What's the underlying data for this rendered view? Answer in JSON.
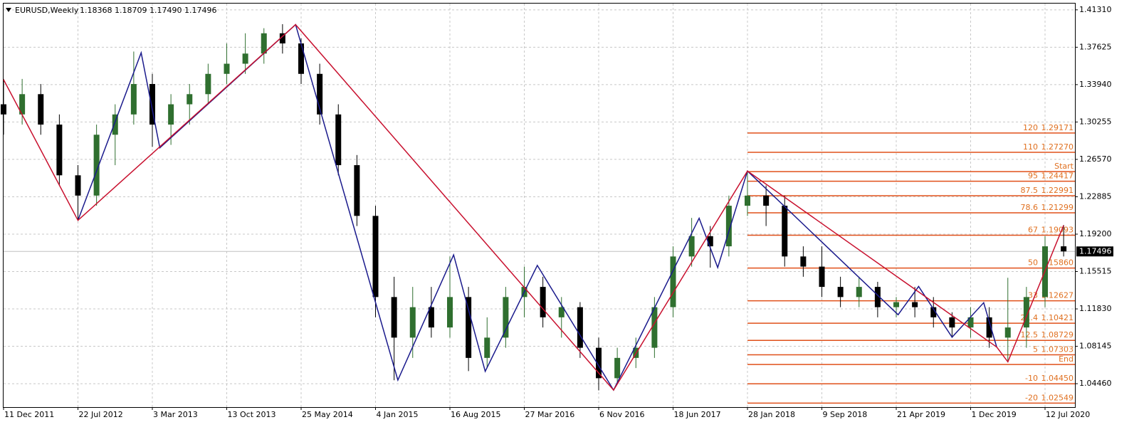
{
  "chart_data": {
    "type": "candlestick",
    "title": "EURUSD,Weekly",
    "subtitle": "1.18368 1.18709 1.17490 1.17496",
    "categories": [
      "11 Dec 2011",
      "22 Jul 2012",
      "3 Mar 2013",
      "13 Oct 2013",
      "25 May 2014",
      "4 Jan 2015",
      "16 Aug 2015",
      "27 Mar 2016",
      "6 Nov 2016",
      "18 Jun 2017",
      "28 Jan 2018",
      "9 Sep 2018",
      "21 Apr 2019",
      "1 Dec 2019",
      "12 Jul 2020"
    ],
    "ylim": [
      1.0215,
      1.4193
    ],
    "yticks": [
      {
        "value": 1.4131,
        "label": "1.41310"
      },
      {
        "value": 1.37625,
        "label": "1.37625"
      },
      {
        "value": 1.3394,
        "label": "1.33940"
      },
      {
        "value": 1.30255,
        "label": "1.30255"
      },
      {
        "value": 1.2657,
        "label": "1.26570"
      },
      {
        "value": 1.22885,
        "label": "1.22885"
      },
      {
        "value": 1.192,
        "label": "1.19200"
      },
      {
        "value": 1.15515,
        "label": "1.15515"
      },
      {
        "value": 1.1183,
        "label": "1.11830"
      },
      {
        "value": 1.08145,
        "label": "1.08145"
      },
      {
        "value": 1.0446,
        "label": "1.04460"
      }
    ],
    "grid": true,
    "up_color": "#2f6f2f",
    "down_color": "#000000",
    "last_price": 1.17496,
    "candles": [
      {
        "o": 1.32,
        "h": 1.345,
        "l": 1.29,
        "c": 1.31
      },
      {
        "o": 1.31,
        "h": 1.345,
        "l": 1.3,
        "c": 1.33
      },
      {
        "o": 1.33,
        "h": 1.34,
        "l": 1.29,
        "c": 1.3
      },
      {
        "o": 1.3,
        "h": 1.31,
        "l": 1.24,
        "c": 1.25
      },
      {
        "o": 1.25,
        "h": 1.26,
        "l": 1.205,
        "c": 1.23
      },
      {
        "o": 1.23,
        "h": 1.3,
        "l": 1.22,
        "c": 1.29
      },
      {
        "o": 1.29,
        "h": 1.32,
        "l": 1.26,
        "c": 1.31
      },
      {
        "o": 1.31,
        "h": 1.372,
        "l": 1.3,
        "c": 1.34
      },
      {
        "o": 1.34,
        "h": 1.35,
        "l": 1.278,
        "c": 1.3
      },
      {
        "o": 1.3,
        "h": 1.33,
        "l": 1.28,
        "c": 1.32
      },
      {
        "o": 1.32,
        "h": 1.34,
        "l": 1.3,
        "c": 1.33
      },
      {
        "o": 1.33,
        "h": 1.36,
        "l": 1.32,
        "c": 1.35
      },
      {
        "o": 1.35,
        "h": 1.38,
        "l": 1.34,
        "c": 1.36
      },
      {
        "o": 1.36,
        "h": 1.39,
        "l": 1.35,
        "c": 1.37
      },
      {
        "o": 1.37,
        "h": 1.395,
        "l": 1.36,
        "c": 1.39
      },
      {
        "o": 1.39,
        "h": 1.399,
        "l": 1.37,
        "c": 1.38
      },
      {
        "o": 1.38,
        "h": 1.385,
        "l": 1.34,
        "c": 1.35
      },
      {
        "o": 1.35,
        "h": 1.36,
        "l": 1.3,
        "c": 1.31
      },
      {
        "o": 1.31,
        "h": 1.32,
        "l": 1.25,
        "c": 1.26
      },
      {
        "o": 1.26,
        "h": 1.27,
        "l": 1.2,
        "c": 1.21
      },
      {
        "o": 1.21,
        "h": 1.22,
        "l": 1.11,
        "c": 1.13
      },
      {
        "o": 1.13,
        "h": 1.15,
        "l": 1.048,
        "c": 1.09
      },
      {
        "o": 1.09,
        "h": 1.14,
        "l": 1.07,
        "c": 1.12
      },
      {
        "o": 1.12,
        "h": 1.14,
        "l": 1.09,
        "c": 1.1
      },
      {
        "o": 1.1,
        "h": 1.17,
        "l": 1.09,
        "c": 1.13
      },
      {
        "o": 1.13,
        "h": 1.14,
        "l": 1.057,
        "c": 1.07
      },
      {
        "o": 1.07,
        "h": 1.11,
        "l": 1.06,
        "c": 1.09
      },
      {
        "o": 1.09,
        "h": 1.14,
        "l": 1.08,
        "c": 1.13
      },
      {
        "o": 1.13,
        "h": 1.16,
        "l": 1.11,
        "c": 1.14
      },
      {
        "o": 1.14,
        "h": 1.15,
        "l": 1.1,
        "c": 1.11
      },
      {
        "o": 1.11,
        "h": 1.13,
        "l": 1.09,
        "c": 1.12
      },
      {
        "o": 1.12,
        "h": 1.125,
        "l": 1.07,
        "c": 1.08
      },
      {
        "o": 1.08,
        "h": 1.09,
        "l": 1.038,
        "c": 1.05
      },
      {
        "o": 1.05,
        "h": 1.08,
        "l": 1.045,
        "c": 1.07
      },
      {
        "o": 1.07,
        "h": 1.09,
        "l": 1.06,
        "c": 1.08
      },
      {
        "o": 1.08,
        "h": 1.13,
        "l": 1.07,
        "c": 1.12
      },
      {
        "o": 1.12,
        "h": 1.18,
        "l": 1.11,
        "c": 1.17
      },
      {
        "o": 1.17,
        "h": 1.208,
        "l": 1.16,
        "c": 1.19
      },
      {
        "o": 1.19,
        "h": 1.2,
        "l": 1.159,
        "c": 1.18
      },
      {
        "o": 1.18,
        "h": 1.23,
        "l": 1.17,
        "c": 1.22
      },
      {
        "o": 1.22,
        "h": 1.254,
        "l": 1.21,
        "c": 1.23
      },
      {
        "o": 1.23,
        "h": 1.24,
        "l": 1.2,
        "c": 1.22
      },
      {
        "o": 1.22,
        "h": 1.23,
        "l": 1.16,
        "c": 1.17
      },
      {
        "o": 1.17,
        "h": 1.18,
        "l": 1.15,
        "c": 1.16
      },
      {
        "o": 1.16,
        "h": 1.18,
        "l": 1.13,
        "c": 1.14
      },
      {
        "o": 1.14,
        "h": 1.15,
        "l": 1.12,
        "c": 1.13
      },
      {
        "o": 1.13,
        "h": 1.15,
        "l": 1.12,
        "c": 1.14
      },
      {
        "o": 1.14,
        "h": 1.145,
        "l": 1.11,
        "c": 1.12
      },
      {
        "o": 1.12,
        "h": 1.13,
        "l": 1.11,
        "c": 1.125
      },
      {
        "o": 1.125,
        "h": 1.14,
        "l": 1.11,
        "c": 1.12
      },
      {
        "o": 1.12,
        "h": 1.13,
        "l": 1.1,
        "c": 1.11
      },
      {
        "o": 1.11,
        "h": 1.115,
        "l": 1.09,
        "c": 1.1
      },
      {
        "o": 1.1,
        "h": 1.12,
        "l": 1.09,
        "c": 1.11
      },
      {
        "o": 1.11,
        "h": 1.12,
        "l": 1.08,
        "c": 1.09
      },
      {
        "o": 1.09,
        "h": 1.149,
        "l": 1.066,
        "c": 1.1
      },
      {
        "o": 1.1,
        "h": 1.14,
        "l": 1.08,
        "c": 1.13
      },
      {
        "o": 1.13,
        "h": 1.19,
        "l": 1.12,
        "c": 1.18
      },
      {
        "o": 1.18,
        "h": 1.201,
        "l": 1.17,
        "c": 1.175
      }
    ],
    "zigzags": [
      {
        "color": "#1a1a8c",
        "x": [
          4,
          7.4,
          8.4,
          15.7,
          21.2,
          24.2,
          25.9,
          28.7,
          32.8,
          37.4,
          38.4,
          40,
          48.1,
          49.2,
          51,
          52.7,
          53.4
        ],
        "values": [
          1.2056,
          1.3708,
          1.2771,
          1.3985,
          1.0481,
          1.1716,
          1.0567,
          1.1612,
          1.0383,
          1.2077,
          1.1591,
          1.2542,
          1.1126,
          1.1404,
          1.0904,
          1.1244,
          1.0807
        ]
      },
      {
        "color": "#c8102e",
        "x": [
          0,
          4,
          15.7,
          32.8,
          40,
          53.4,
          54,
          57
        ],
        "values": [
          1.3444,
          1.2056,
          1.3985,
          1.0383,
          1.2542,
          1.0807,
          1.0661,
          1.2007
        ]
      }
    ],
    "fib": {
      "x_start": 40,
      "color": "#e0501a",
      "text_color": "#e07020",
      "levels": [
        {
          "label": "120",
          "value": 1.29171,
          "price_label": "1.29171"
        },
        {
          "label": "110",
          "value": 1.2727,
          "price_label": "1.27270"
        },
        {
          "label": "Start",
          "value": 1.25368
        },
        {
          "label": "95",
          "value": 1.24417,
          "price_label": "1.24417"
        },
        {
          "label": "87.5",
          "value": 1.22991,
          "price_label": "1.22991"
        },
        {
          "label": "78.6",
          "value": 1.21299,
          "price_label": "1.21299"
        },
        {
          "label": "67",
          "value": 1.19093,
          "price_label": "1.19093"
        },
        {
          "label": "50",
          "value": 1.1586,
          "price_label": "1.15860"
        },
        {
          "label": "33",
          "value": 1.12627,
          "price_label": "1.12627"
        },
        {
          "label": "21.4",
          "value": 1.10421,
          "price_label": "1.10421"
        },
        {
          "label": "12.5",
          "value": 1.08729,
          "price_label": "1.08729"
        },
        {
          "label": "5",
          "value": 1.07303,
          "price_label": "1.07303"
        },
        {
          "label": "End",
          "value": 1.06352
        },
        {
          "label": "-10",
          "value": 1.0445,
          "price_label": "1.04450"
        },
        {
          "label": "-20",
          "value": 1.02549,
          "price_label": "1.02549"
        }
      ]
    }
  }
}
